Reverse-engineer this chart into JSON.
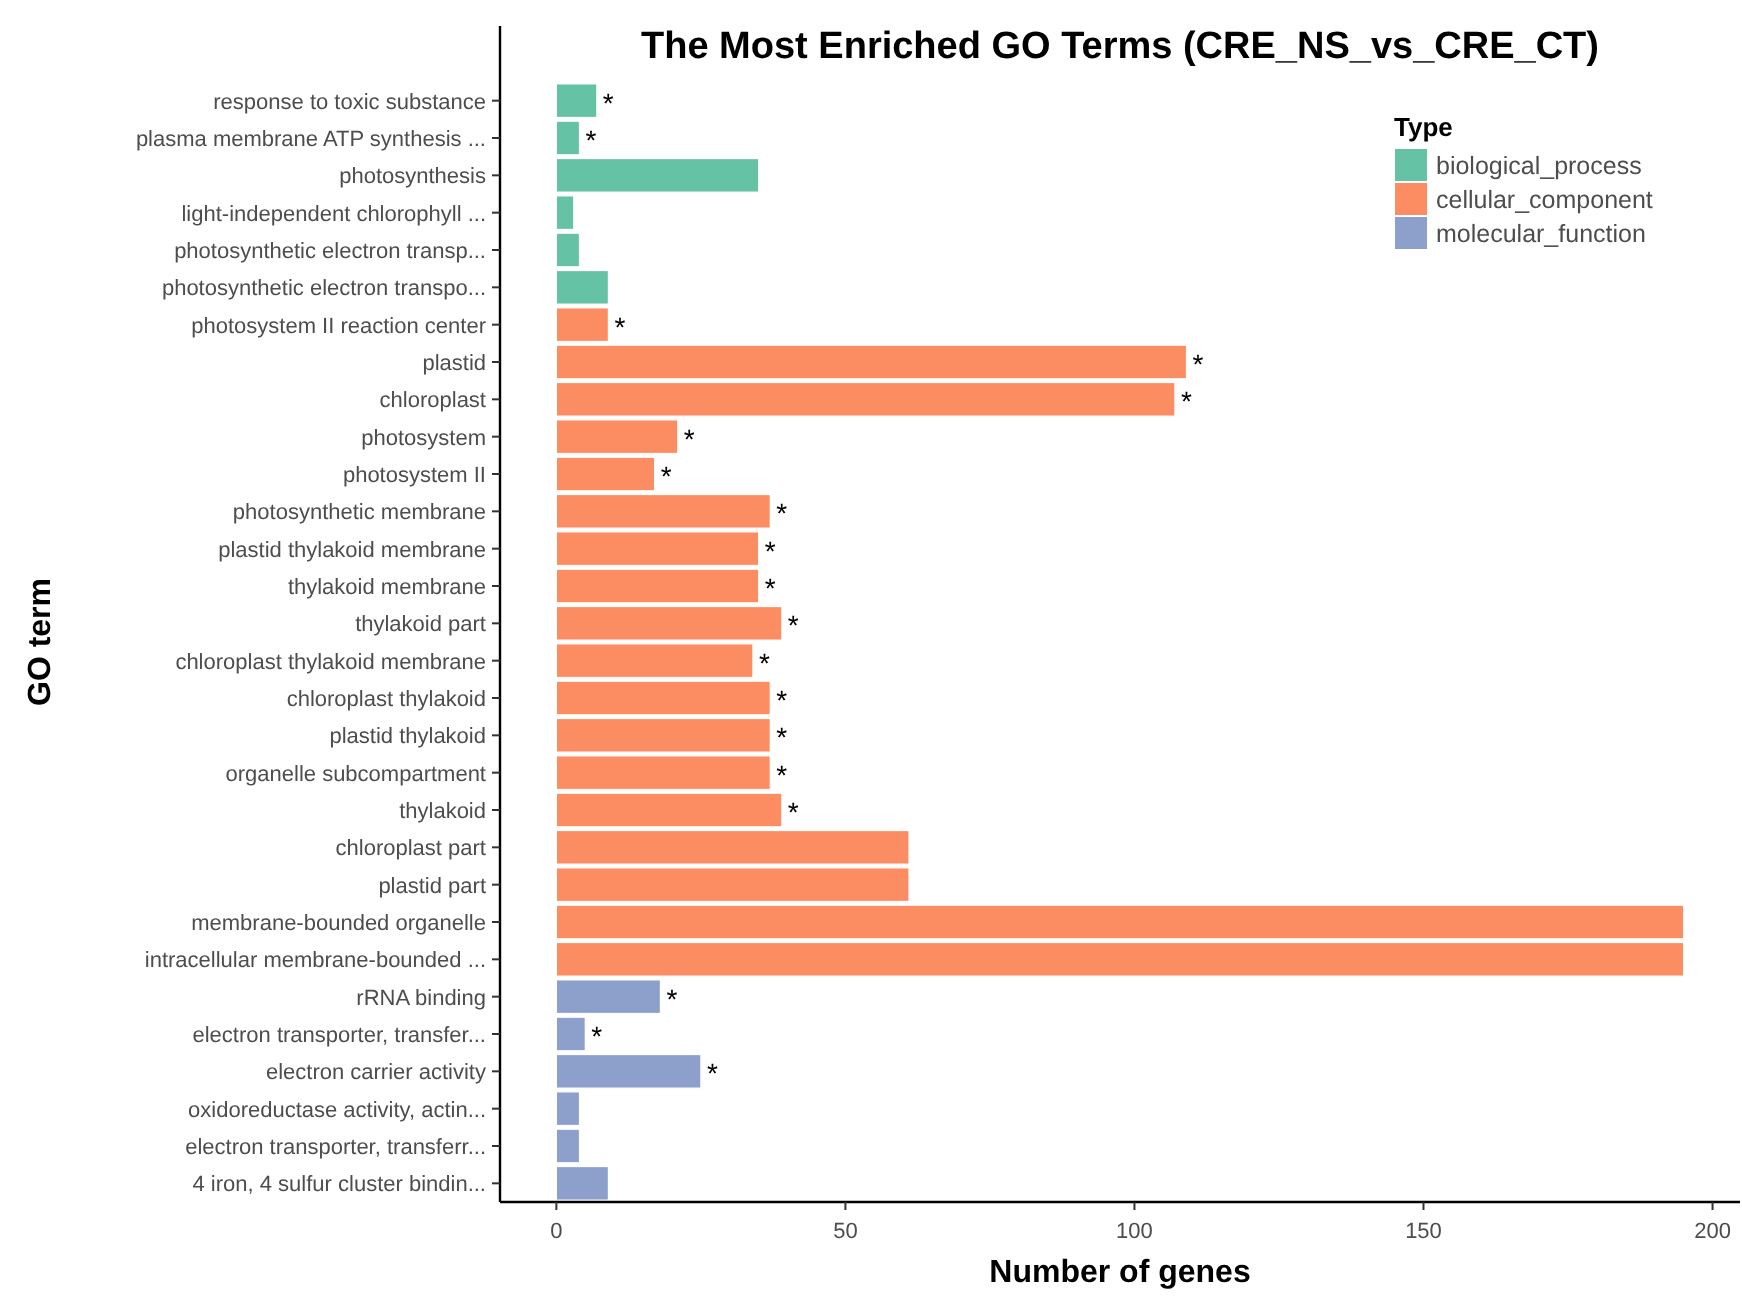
{
  "chart_data": {
    "type": "bar",
    "orientation": "horizontal",
    "title": "The Most Enriched GO Terms (CRE_NS_vs_CRE_CT)",
    "xlabel": "Number of genes",
    "ylabel": "GO term",
    "legend_title": "Type",
    "legend": "top right",
    "grid": false,
    "categories": [
      "response to toxic substance",
      "plasma membrane ATP synthesis ...",
      "photosynthesis",
      "light-independent chlorophyll ...",
      "photosynthetic electron transp...",
      "photosynthetic electron transpo...",
      "photosystem II reaction center",
      "plastid",
      "chloroplast",
      "photosystem",
      "photosystem II",
      "photosynthetic membrane",
      "plastid thylakoid membrane",
      "thylakoid membrane",
      "thylakoid part",
      "chloroplast thylakoid membrane",
      "chloroplast thylakoid",
      "plastid thylakoid",
      "organelle subcompartment",
      "thylakoid",
      "chloroplast part",
      "plastid part",
      "membrane-bounded organelle",
      "intracellular membrane-bounded ...",
      "rRNA binding",
      "electron transporter, transfer...",
      "electron carrier activity",
      "oxidoreductase activity, actin...",
      "electron transporter, transferr...",
      "4 iron, 4 sulfur cluster bindin..."
    ],
    "series": [
      {
        "name": "biological_process",
        "color": "#66c2a5",
        "values": [
          7,
          4,
          35,
          3,
          4,
          9,
          null,
          null,
          null,
          null,
          null,
          null,
          null,
          null,
          null,
          null,
          null,
          null,
          null,
          null,
          null,
          null,
          null,
          null,
          null,
          null,
          null,
          null,
          null,
          null
        ]
      },
      {
        "name": "cellular_component",
        "color": "#fc8d62",
        "values": [
          null,
          null,
          null,
          null,
          null,
          null,
          9,
          109,
          107,
          21,
          17,
          37,
          35,
          35,
          39,
          34,
          37,
          37,
          37,
          39,
          61,
          61,
          195,
          195,
          null,
          null,
          null,
          null,
          null,
          null
        ]
      },
      {
        "name": "molecular_function",
        "color": "#8da0cb",
        "values": [
          null,
          null,
          null,
          null,
          null,
          null,
          null,
          null,
          null,
          null,
          null,
          null,
          null,
          null,
          null,
          null,
          null,
          null,
          null,
          null,
          null,
          null,
          null,
          null,
          18,
          5,
          25,
          4,
          4,
          9
        ]
      }
    ],
    "value_labels": [
      "*",
      "*",
      null,
      null,
      null,
      null,
      "*",
      "*",
      "*",
      "*",
      "*",
      "*",
      "*",
      "*",
      "*",
      "*",
      "*",
      "*",
      "*",
      "*",
      null,
      null,
      null,
      null,
      "*",
      "*",
      "*",
      null,
      null,
      null
    ],
    "xlim": [
      -9.75,
      204.75
    ],
    "xticks": [
      0,
      50,
      100,
      150,
      200
    ]
  }
}
